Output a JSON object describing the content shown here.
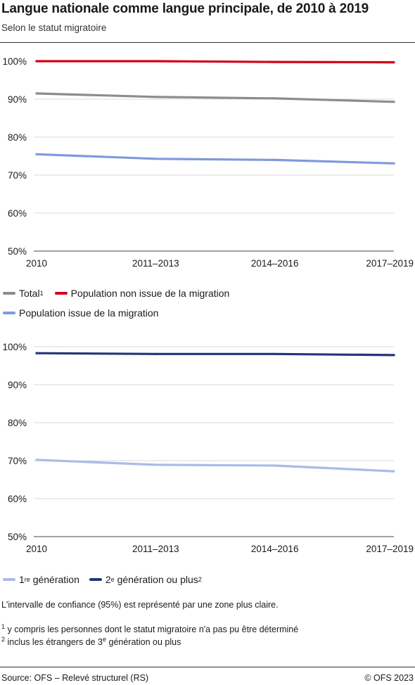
{
  "title": "Langue nationale comme langue principale, de 2010 à 2019",
  "subtitle": "Selon le statut migratoire",
  "chart_data": [
    {
      "type": "line",
      "categories": [
        "2010",
        "2011–2013",
        "2014–2016",
        "2017–2019"
      ],
      "ylim": [
        50,
        100
      ],
      "yticks": [
        "100%",
        "90%",
        "80%",
        "70%",
        "60%",
        "50%"
      ],
      "ytick_values": [
        100,
        90,
        80,
        70,
        60,
        50
      ],
      "series": [
        {
          "name": "Total",
          "sup": "1",
          "color": "#8c8c8c",
          "values": [
            91.5,
            90.6,
            90.2,
            89.3
          ]
        },
        {
          "name": "Population non issue de la migration",
          "sup": "",
          "color": "#d0021b",
          "values": [
            100.0,
            100.0,
            99.8,
            99.7
          ]
        },
        {
          "name": "Population issue de la migration",
          "sup": "",
          "color": "#7f99dd",
          "values": [
            75.5,
            74.3,
            74.0,
            73.1
          ]
        }
      ],
      "legend_position": "bottom"
    },
    {
      "type": "line",
      "categories": [
        "2010",
        "2011–2013",
        "2014–2016",
        "2017–2019"
      ],
      "ylim": [
        50,
        100
      ],
      "yticks": [
        "100%",
        "90%",
        "80%",
        "70%",
        "60%",
        "50%"
      ],
      "ytick_values": [
        100,
        90,
        80,
        70,
        60,
        50
      ],
      "series": [
        {
          "name": "génération",
          "prefix": "1",
          "prefix_sup": "re",
          "sup": "",
          "color": "#a9bce8",
          "values": [
            70.2,
            68.9,
            68.7,
            67.2
          ]
        },
        {
          "name": "génération ou plus",
          "prefix": "2",
          "prefix_sup": "e",
          "sup": "2",
          "color": "#23357a",
          "values": [
            98.3,
            98.1,
            98.1,
            97.8
          ]
        }
      ],
      "legend_position": "bottom"
    }
  ],
  "notes": {
    "confidence": "L'intervalle de confiance (95%) est représenté par une zone plus claire.",
    "fn1_mark": "1",
    "fn1_text": "y compris les personnes dont le statut migratoire n'a pas pu être déterminé",
    "fn2_mark": "2",
    "fn2_text_a": "inclus les étrangers de 3",
    "fn2_sup": "e",
    "fn2_text_b": " génération ou plus"
  },
  "footer": {
    "source": "Source: OFS – Relevé structurel (RS)",
    "copyright": "© OFS 2023"
  }
}
